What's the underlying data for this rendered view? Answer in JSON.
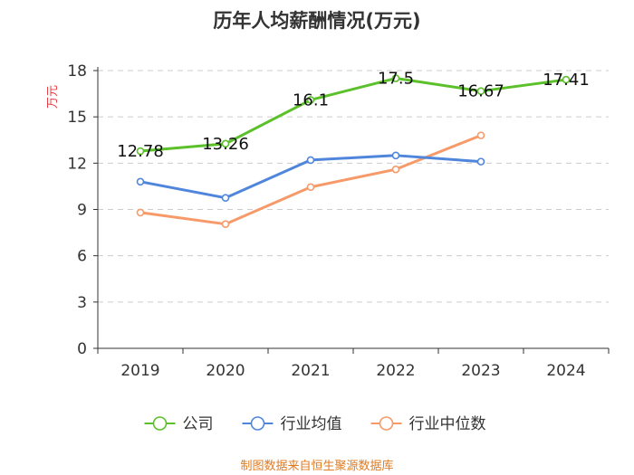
{
  "chart_data": {
    "type": "line",
    "title": "历年人均薪酬情况(万元)",
    "ylabel": "万元",
    "xlabel": "",
    "categories": [
      "2019",
      "2020",
      "2021",
      "2022",
      "2023",
      "2024"
    ],
    "ylim": [
      0,
      18
    ],
    "yticks": [
      0,
      3,
      6,
      9,
      12,
      15,
      18
    ],
    "grid": true,
    "legend_position": "bottom",
    "series": [
      {
        "name": "公司",
        "color": "#5bc02a",
        "values": [
          12.78,
          13.26,
          16.1,
          17.5,
          16.67,
          17.41
        ],
        "labels": [
          "12.78",
          "13.26",
          "16.1",
          "17.5",
          "16.67",
          "17.41"
        ]
      },
      {
        "name": "行业均值",
        "color": "#4f86dc",
        "values": [
          10.8,
          9.75,
          12.2,
          12.5,
          12.1,
          null
        ]
      },
      {
        "name": "行业中位数",
        "color": "#f79a6a",
        "values": [
          8.8,
          8.05,
          10.45,
          11.6,
          13.8,
          null
        ]
      }
    ],
    "source": "制图数据来自恒生聚源数据库"
  }
}
